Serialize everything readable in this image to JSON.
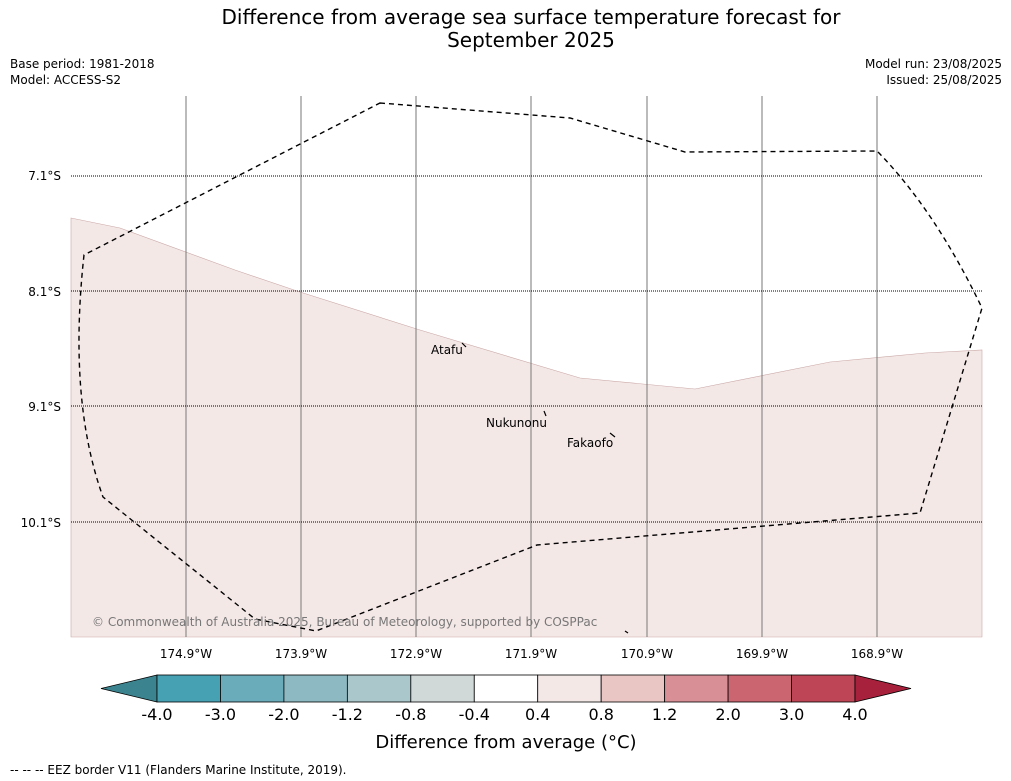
{
  "title_line1": "Difference from average sea surface temperature forecast for",
  "title_line2": "September 2025",
  "base_period": "Base period: 1981-2018",
  "model": "Model: ACCESS-S2",
  "model_run": "Model run: 23/08/2025",
  "issued": "Issued: 25/08/2025",
  "map": {
    "lat_labels": [
      "7.1°S",
      "8.1°S",
      "9.1°S",
      "10.1°S"
    ],
    "lon_labels": [
      "174.9°W",
      "173.9°W",
      "172.9°W",
      "171.9°W",
      "170.9°W",
      "169.9°W",
      "168.9°W"
    ],
    "places": [
      "Atafu",
      "Nukunonu",
      "Fakaofo"
    ],
    "copyright": "© Commonwealth of Australia 2025, Bureau of Meteorology, supported by COSPPac",
    "anomaly_fill_color": "#f4e8e7",
    "anomaly_fill_category": "0.4 to 0.8"
  },
  "colorbar": {
    "ticks": [
      "-4.0",
      "-3.0",
      "-2.0",
      "-1.2",
      "-0.8",
      "-0.4",
      "0.4",
      "0.8",
      "1.2",
      "2.0",
      "3.0",
      "4.0"
    ],
    "colors": [
      "#3b848f",
      "#46a2b3",
      "#6bacbb",
      "#8cb9c2",
      "#aac8cb",
      "#d1d9d8",
      "#ffffff",
      "#f4e8e7",
      "#e9c6c3",
      "#d88f96",
      "#cb6670",
      "#bd4555",
      "#a8213c"
    ],
    "label": "Difference from average (°C)"
  },
  "footnote": "--  --  -- EEZ border V11 (Flanders Marine Institute, 2019)."
}
